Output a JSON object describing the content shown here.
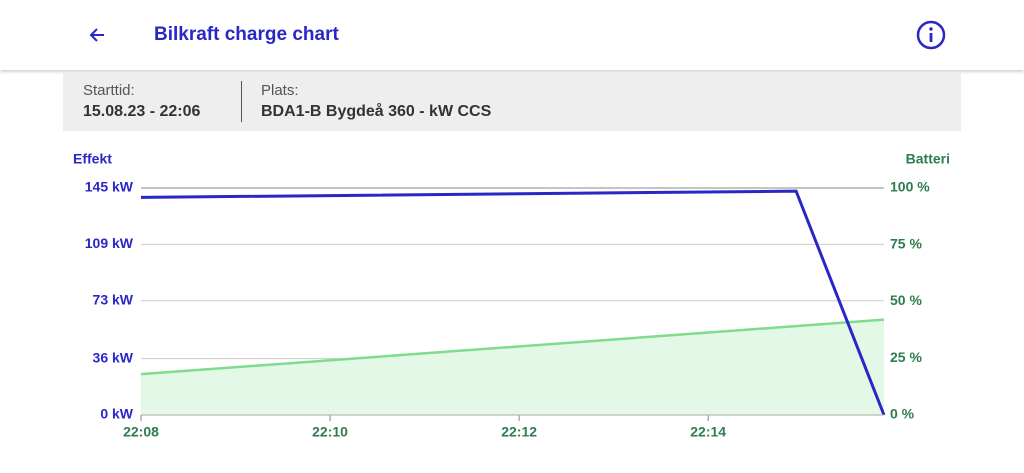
{
  "header": {
    "title": "Bilkraft charge chart"
  },
  "info": {
    "start_label": "Starttid:",
    "start_value": "15.08.23 - 22:06",
    "place_label": "Plats:",
    "place_value": "BDA1-B Bygdeå 360 - kW CCS"
  },
  "chart_data": {
    "type": "line",
    "ylabel": "Effekt",
    "y2label": "Batteri",
    "xlim": [
      1328,
      1335.86
    ],
    "xticks": [
      {
        "value": 1328,
        "label": "22:08"
      },
      {
        "value": 1330,
        "label": "22:10"
      },
      {
        "value": 1332,
        "label": "22:12"
      },
      {
        "value": 1334,
        "label": "22:14"
      }
    ],
    "ylim": [
      0,
      145
    ],
    "yticks": [
      {
        "value": 0,
        "label": "0 kW"
      },
      {
        "value": 36,
        "label": "36 kW"
      },
      {
        "value": 73,
        "label": "73 kW"
      },
      {
        "value": 109,
        "label": "109 kW"
      },
      {
        "value": 145,
        "label": "145 kW"
      }
    ],
    "y2lim": [
      0,
      100
    ],
    "y2ticks": [
      {
        "value": 0,
        "label": "0 %"
      },
      {
        "value": 25,
        "label": "25 %"
      },
      {
        "value": 50,
        "label": "50 %"
      },
      {
        "value": 75,
        "label": "75 %"
      },
      {
        "value": 100,
        "label": "100 %"
      }
    ],
    "grid": true,
    "series": [
      {
        "color": "#2a27c7",
        "x": [
          1328,
          1334.93,
          1335.86
        ],
        "values": [
          139,
          143,
          0
        ]
      },
      {
        "color": "#7fdc8e",
        "fill": "#e4f8e7",
        "axis": "y2",
        "x": [
          1328,
          1335.86
        ],
        "values": [
          18,
          42
        ]
      }
    ]
  }
}
